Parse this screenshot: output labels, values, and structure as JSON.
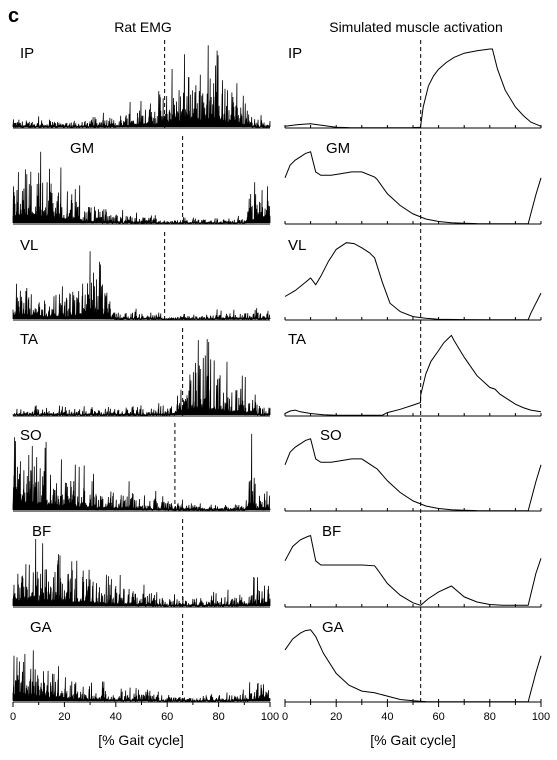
{
  "panel_letter": "c",
  "left_title": "Rat EMG",
  "right_title": "Simulated muscle activation",
  "chart_data": [
    {
      "type": "line",
      "title": "Rat EMG",
      "xlabel": "[% Gait cycle]",
      "xlim": [
        0,
        100
      ],
      "x_ticks": [
        0,
        20,
        40,
        60,
        80,
        100
      ],
      "x_tick_labels": [
        "0",
        "20",
        "40",
        "60",
        "80",
        "100"
      ],
      "ylim": [
        0,
        1
      ],
      "grid": false,
      "series": [
        {
          "name": "IP",
          "dashed_x": 59,
          "envelope_x": [
            0,
            10,
            20,
            30,
            40,
            45,
            50,
            55,
            60,
            65,
            70,
            75,
            80,
            85,
            90,
            95,
            100
          ],
          "envelope_y": [
            0.1,
            0.1,
            0.1,
            0.1,
            0.12,
            0.25,
            0.3,
            0.35,
            0.45,
            0.6,
            0.75,
            0.7,
            0.65,
            0.45,
            0.25,
            0.1,
            0.1
          ]
        },
        {
          "name": "GM",
          "dashed_x": 66,
          "envelope_x": [
            0,
            5,
            10,
            15,
            20,
            25,
            30,
            40,
            50,
            60,
            70,
            80,
            90,
            95,
            100
          ],
          "envelope_y": [
            0.6,
            0.75,
            0.7,
            0.55,
            0.4,
            0.35,
            0.2,
            0.12,
            0.08,
            0.05,
            0.05,
            0.05,
            0.08,
            0.4,
            0.65
          ]
        },
        {
          "name": "VL",
          "dashed_x": 59,
          "envelope_x": [
            0,
            5,
            10,
            15,
            20,
            25,
            30,
            35,
            40,
            50,
            60,
            70,
            80,
            90,
            100
          ],
          "envelope_y": [
            0.35,
            0.4,
            0.3,
            0.3,
            0.3,
            0.4,
            0.65,
            0.45,
            0.12,
            0.08,
            0.05,
            0.05,
            0.08,
            0.1,
            0.1
          ]
        },
        {
          "name": "TA",
          "dashed_x": 66,
          "envelope_x": [
            0,
            10,
            20,
            30,
            40,
            50,
            60,
            63,
            66,
            70,
            75,
            80,
            85,
            90,
            95,
            100
          ],
          "envelope_y": [
            0.08,
            0.08,
            0.08,
            0.08,
            0.08,
            0.08,
            0.1,
            0.15,
            0.45,
            0.65,
            0.6,
            0.5,
            0.4,
            0.3,
            0.15,
            0.1
          ]
        },
        {
          "name": "SO",
          "dashed_x": 63,
          "envelope_x": [
            0,
            5,
            10,
            15,
            20,
            25,
            30,
            40,
            50,
            60,
            70,
            80,
            90,
            93,
            95,
            100
          ],
          "envelope_y": [
            0.55,
            0.7,
            0.65,
            0.55,
            0.45,
            0.4,
            0.3,
            0.25,
            0.2,
            0.12,
            0.08,
            0.06,
            0.08,
            0.6,
            0.2,
            0.25
          ]
        },
        {
          "name": "BF",
          "dashed_x": 66,
          "envelope_x": [
            0,
            5,
            10,
            15,
            20,
            30,
            40,
            50,
            60,
            70,
            80,
            90,
            95,
            100
          ],
          "envelope_y": [
            0.5,
            0.55,
            0.5,
            0.45,
            0.4,
            0.35,
            0.25,
            0.2,
            0.1,
            0.1,
            0.12,
            0.15,
            0.25,
            0.3
          ]
        },
        {
          "name": "GA",
          "dashed_x": 66,
          "envelope_x": [
            0,
            3,
            6,
            10,
            15,
            20,
            30,
            40,
            50,
            60,
            70,
            80,
            90,
            95,
            100
          ],
          "envelope_y": [
            0.55,
            0.75,
            0.5,
            0.45,
            0.35,
            0.3,
            0.2,
            0.15,
            0.1,
            0.08,
            0.06,
            0.06,
            0.1,
            0.25,
            0.3
          ]
        }
      ]
    },
    {
      "type": "line",
      "title": "Simulated muscle activation",
      "xlabel": "[% Gait cycle]",
      "xlim": [
        0,
        100
      ],
      "x_ticks": [
        0,
        20,
        40,
        60,
        80,
        100
      ],
      "x_tick_labels": [
        "0",
        "20",
        "40",
        "60",
        "80",
        "100"
      ],
      "ylim": [
        0,
        1
      ],
      "grid": false,
      "dashed_x": 53,
      "series": [
        {
          "name": "IP",
          "x": [
            0,
            5,
            10,
            15,
            20,
            25,
            30,
            35,
            40,
            45,
            50,
            52.9,
            53,
            54,
            56,
            58,
            60,
            63,
            66,
            70,
            75,
            80,
            81,
            83,
            86,
            90,
            93,
            96,
            100
          ],
          "y": [
            0.02,
            0.04,
            0.05,
            0.03,
            0.01,
            0.005,
            0.003,
            0.003,
            0.003,
            0.003,
            0.005,
            0.01,
            0.03,
            0.25,
            0.5,
            0.62,
            0.7,
            0.78,
            0.84,
            0.89,
            0.92,
            0.94,
            0.94,
            0.7,
            0.45,
            0.25,
            0.15,
            0.07,
            0.02
          ]
        },
        {
          "name": "GM",
          "x": [
            0,
            2,
            4,
            6,
            8,
            10,
            12,
            14,
            18,
            22,
            26,
            30,
            35,
            36,
            40,
            45,
            50,
            55,
            60,
            65,
            70,
            75,
            80,
            85,
            90,
            94,
            95,
            96,
            98,
            100
          ],
          "y": [
            0.55,
            0.7,
            0.76,
            0.8,
            0.84,
            0.86,
            0.62,
            0.58,
            0.58,
            0.6,
            0.62,
            0.62,
            0.56,
            0.53,
            0.36,
            0.22,
            0.12,
            0.06,
            0.03,
            0.015,
            0.01,
            0.005,
            0.003,
            0.003,
            0.003,
            0.003,
            0.003,
            0.12,
            0.35,
            0.55
          ]
        },
        {
          "name": "VL",
          "x": [
            0,
            4,
            8,
            10,
            12,
            14,
            17,
            20,
            24,
            27,
            30,
            33,
            35,
            38,
            41,
            45,
            50,
            55,
            60,
            70,
            80,
            90,
            94,
            95,
            96,
            98,
            100
          ],
          "y": [
            0.28,
            0.35,
            0.45,
            0.5,
            0.42,
            0.52,
            0.7,
            0.84,
            0.92,
            0.91,
            0.86,
            0.8,
            0.74,
            0.45,
            0.2,
            0.1,
            0.04,
            0.02,
            0.01,
            0.005,
            0.003,
            0.003,
            0.003,
            0.003,
            0.08,
            0.2,
            0.32
          ]
        },
        {
          "name": "TA",
          "x": [
            0,
            2,
            4,
            6,
            10,
            15,
            20,
            25,
            30,
            35,
            38,
            40,
            45,
            50,
            52.9,
            53,
            55,
            57,
            60,
            62,
            64,
            65,
            66,
            70,
            75,
            80,
            82,
            84,
            87,
            90,
            93,
            96,
            100
          ],
          "y": [
            0.03,
            0.06,
            0.07,
            0.05,
            0.03,
            0.015,
            0.01,
            0.01,
            0.01,
            0.01,
            0.01,
            0.04,
            0.08,
            0.13,
            0.16,
            0.25,
            0.5,
            0.65,
            0.78,
            0.87,
            0.93,
            0.96,
            0.9,
            0.7,
            0.48,
            0.34,
            0.32,
            0.26,
            0.2,
            0.14,
            0.1,
            0.07,
            0.05
          ]
        },
        {
          "name": "SO",
          "x": [
            0,
            2,
            4,
            6,
            8,
            10,
            12,
            14,
            18,
            22,
            26,
            30,
            35,
            36,
            40,
            45,
            50,
            55,
            60,
            65,
            70,
            75,
            80,
            85,
            90,
            94,
            95,
            96,
            98,
            100
          ],
          "y": [
            0.55,
            0.7,
            0.76,
            0.8,
            0.84,
            0.86,
            0.62,
            0.58,
            0.58,
            0.6,
            0.62,
            0.62,
            0.52,
            0.5,
            0.36,
            0.22,
            0.12,
            0.06,
            0.03,
            0.015,
            0.01,
            0.005,
            0.003,
            0.003,
            0.003,
            0.003,
            0.003,
            0.12,
            0.35,
            0.55
          ]
        },
        {
          "name": "BF",
          "x": [
            0,
            3,
            6,
            9,
            10,
            12,
            14,
            20,
            25,
            30,
            35,
            36,
            40,
            45,
            50,
            53,
            56,
            60,
            65,
            70,
            75,
            80,
            85,
            90,
            94,
            95,
            96,
            98,
            100
          ],
          "y": [
            0.55,
            0.72,
            0.8,
            0.84,
            0.85,
            0.55,
            0.5,
            0.5,
            0.5,
            0.5,
            0.49,
            0.45,
            0.28,
            0.14,
            0.05,
            0.02,
            0.1,
            0.18,
            0.25,
            0.12,
            0.06,
            0.03,
            0.02,
            0.02,
            0.02,
            0.02,
            0.15,
            0.4,
            0.58
          ]
        },
        {
          "name": "GA",
          "x": [
            0,
            3,
            6,
            8,
            10,
            12,
            15,
            20,
            25,
            30,
            35,
            40,
            45,
            50,
            55,
            60,
            70,
            80,
            90,
            94,
            95,
            96,
            98,
            100
          ],
          "y": [
            0.62,
            0.75,
            0.82,
            0.85,
            0.86,
            0.78,
            0.58,
            0.34,
            0.2,
            0.13,
            0.11,
            0.07,
            0.03,
            0.015,
            0.005,
            0.003,
            0.003,
            0.003,
            0.003,
            0.003,
            0.003,
            0.12,
            0.35,
            0.55
          ]
        }
      ]
    }
  ]
}
